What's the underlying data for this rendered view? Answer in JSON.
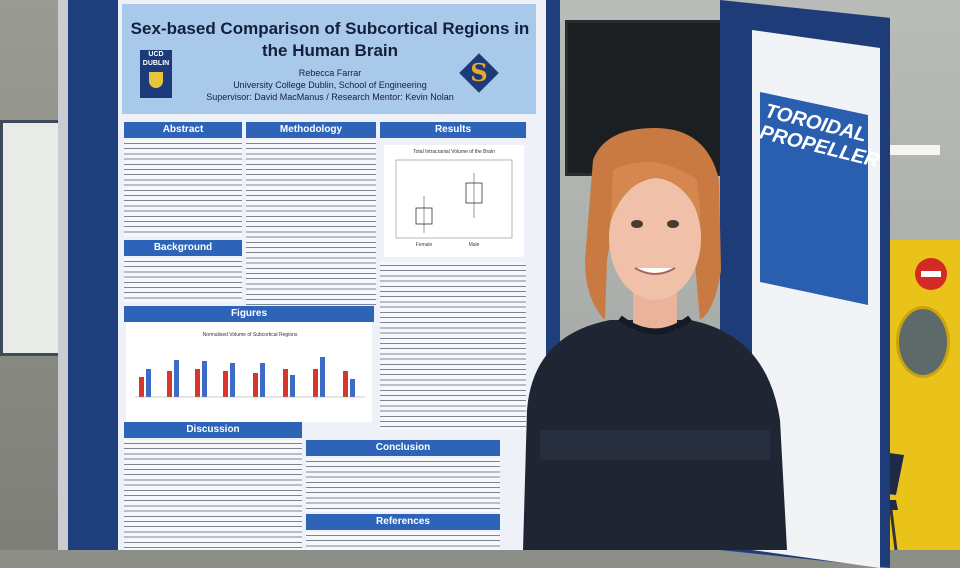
{
  "poster": {
    "title": "Sex-based Comparison of Subcortical Regions in the Human Brain",
    "author": "Rebecca Farrar",
    "affiliation": "University College Dublin, School of Engineering",
    "supervisor": "Supervisor: David MacManus / Research Mentor: Kevin Nolan",
    "logo_text": "UCD DUBLIN",
    "sections": {
      "abstract": "Abstract",
      "methodology": "Methodology",
      "results": "Results",
      "background": "Background",
      "figures": "Figures",
      "discussion": "Discussion",
      "conclusion": "Conclusion",
      "references": "References"
    },
    "figure_title": "Normalised Volume of Subcortical Regions",
    "results_chart_title": "Total Intracranial Volume of the Brain",
    "results_chart_xlabels": [
      "Female",
      "Male"
    ]
  },
  "right_poster": {
    "title": "TOROIDAL PROPELLER"
  },
  "colors": {
    "poster_blue": "#1f3f7c",
    "header_blue": "#2d64b8",
    "title_bg": "#a9c9ea",
    "bar_red": "#d8352c",
    "bar_blue": "#3d6cc7",
    "door_yellow": "#e9c21a"
  }
}
